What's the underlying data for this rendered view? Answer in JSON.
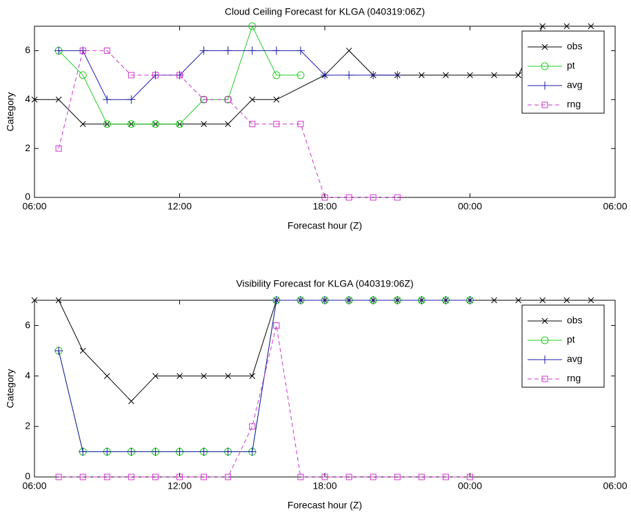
{
  "chart_data": [
    {
      "type": "line",
      "title": "Cloud Ceiling Forecast for KLGA (040319:06Z)",
      "xlabel": "Forecast hour (Z)",
      "ylabel": "Category",
      "xlim": [
        6,
        30
      ],
      "xticks": [
        {
          "value": 6,
          "label": "06:00"
        },
        {
          "value": 12,
          "label": "12:00"
        },
        {
          "value": 18,
          "label": "18:00"
        },
        {
          "value": 24,
          "label": "00:00"
        },
        {
          "value": 30,
          "label": "06:00"
        }
      ],
      "ylim": [
        0,
        7
      ],
      "yticks": [
        0,
        2,
        4,
        6
      ],
      "grid": false,
      "legend": "upper right",
      "series": [
        {
          "name": "obs",
          "color": "#000000",
          "marker": "x",
          "dash": false,
          "x": [
            6,
            7,
            8,
            9,
            10,
            11,
            12,
            13,
            14,
            15,
            16,
            18,
            19,
            20,
            21,
            22,
            23,
            24,
            25,
            26,
            27,
            28,
            29
          ],
          "values": [
            4,
            4,
            3,
            3,
            3,
            3,
            3,
            3,
            3,
            4,
            4,
            5,
            6,
            5,
            5,
            5,
            5,
            5,
            5,
            5,
            7,
            7,
            7
          ]
        },
        {
          "name": "pt",
          "color": "#22cc22",
          "marker": "o",
          "dash": false,
          "x": [
            7,
            8,
            9,
            10,
            11,
            12,
            13,
            14,
            15,
            16,
            17
          ],
          "values": [
            6,
            5,
            3,
            3,
            3,
            3,
            4,
            4,
            7,
            5,
            5
          ]
        },
        {
          "name": "avg",
          "color": "#1a1aaa",
          "marker": "+",
          "dash": false,
          "x": [
            7,
            8,
            9,
            10,
            11,
            12,
            13,
            14,
            15,
            16,
            17,
            18,
            19,
            20,
            21
          ],
          "values": [
            6,
            6,
            4,
            4,
            5,
            5,
            6,
            6,
            6,
            6,
            6,
            5,
            5,
            5,
            5
          ]
        },
        {
          "name": "rng",
          "color": "#cc33cc",
          "marker": "s",
          "dash": true,
          "x": [
            7,
            8,
            9,
            10,
            11,
            12,
            13,
            14,
            15,
            16,
            17,
            18,
            19,
            20,
            21
          ],
          "values": [
            2,
            6,
            6,
            5,
            5,
            5,
            4,
            4,
            3,
            3,
            3,
            0,
            0,
            0,
            0
          ]
        }
      ]
    },
    {
      "type": "line",
      "title": "Visibility Forecast for KLGA (040319:06Z)",
      "xlabel": "Forecast hour (Z)",
      "ylabel": "Category",
      "xlim": [
        6,
        30
      ],
      "xticks": [
        {
          "value": 6,
          "label": "06:00"
        },
        {
          "value": 12,
          "label": "12:00"
        },
        {
          "value": 18,
          "label": "18:00"
        },
        {
          "value": 24,
          "label": "00:00"
        },
        {
          "value": 30,
          "label": "06:00"
        }
      ],
      "ylim": [
        0,
        7
      ],
      "yticks": [
        0,
        2,
        4,
        6
      ],
      "grid": false,
      "legend": "upper right",
      "series": [
        {
          "name": "obs",
          "color": "#000000",
          "marker": "x",
          "dash": false,
          "x": [
            6,
            7,
            8,
            9,
            10,
            11,
            12,
            13,
            14,
            15,
            16,
            17,
            18,
            19,
            20,
            21,
            22,
            23,
            24,
            25,
            26,
            27,
            28,
            29
          ],
          "values": [
            7,
            7,
            5,
            4,
            3,
            4,
            4,
            4,
            4,
            4,
            7,
            7,
            7,
            7,
            7,
            7,
            7,
            7,
            7,
            7,
            7,
            7,
            7,
            7
          ]
        },
        {
          "name": "pt",
          "color": "#22cc22",
          "marker": "o",
          "dash": false,
          "x": [
            7,
            8,
            9,
            10,
            11,
            12,
            13,
            14,
            15,
            16,
            17,
            18,
            19,
            20,
            21,
            22,
            23,
            24
          ],
          "values": [
            5,
            1,
            1,
            1,
            1,
            1,
            1,
            1,
            1,
            7,
            7,
            7,
            7,
            7,
            7,
            7,
            7,
            7
          ]
        },
        {
          "name": "avg",
          "color": "#1a1aaa",
          "marker": "+",
          "dash": false,
          "x": [
            7,
            8,
            9,
            10,
            11,
            12,
            13,
            14,
            15,
            16,
            17,
            18,
            19,
            20,
            21,
            22,
            23,
            24
          ],
          "values": [
            5,
            1,
            1,
            1,
            1,
            1,
            1,
            1,
            1,
            7,
            7,
            7,
            7,
            7,
            7,
            7,
            7,
            7
          ]
        },
        {
          "name": "rng",
          "color": "#cc33cc",
          "marker": "s",
          "dash": true,
          "x": [
            7,
            8,
            9,
            10,
            11,
            12,
            13,
            14,
            15,
            16,
            17,
            18,
            19,
            20,
            21,
            22,
            23,
            24
          ],
          "values": [
            0,
            0,
            0,
            0,
            0,
            0,
            0,
            0,
            2,
            6,
            0,
            0,
            0,
            0,
            0,
            0,
            0,
            0
          ]
        }
      ]
    }
  ]
}
